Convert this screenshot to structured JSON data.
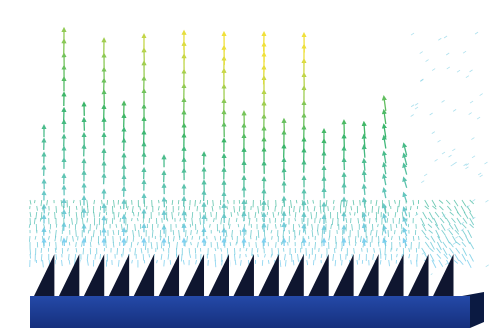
{
  "scene": {
    "subject": "vector-field-visualization",
    "colors": {
      "background": "#ffffff",
      "plate_top": "#2d5fc5",
      "plate_front": "#1c3f9b",
      "plate_side": "#0b1a42",
      "teeth_dark": "#0f1630",
      "teeth_light": "#ffffff",
      "field_low": "#7fd0f0",
      "field_mid": "#39b56a",
      "field_high": "#f0e03a"
    },
    "teeth_count": 17
  }
}
